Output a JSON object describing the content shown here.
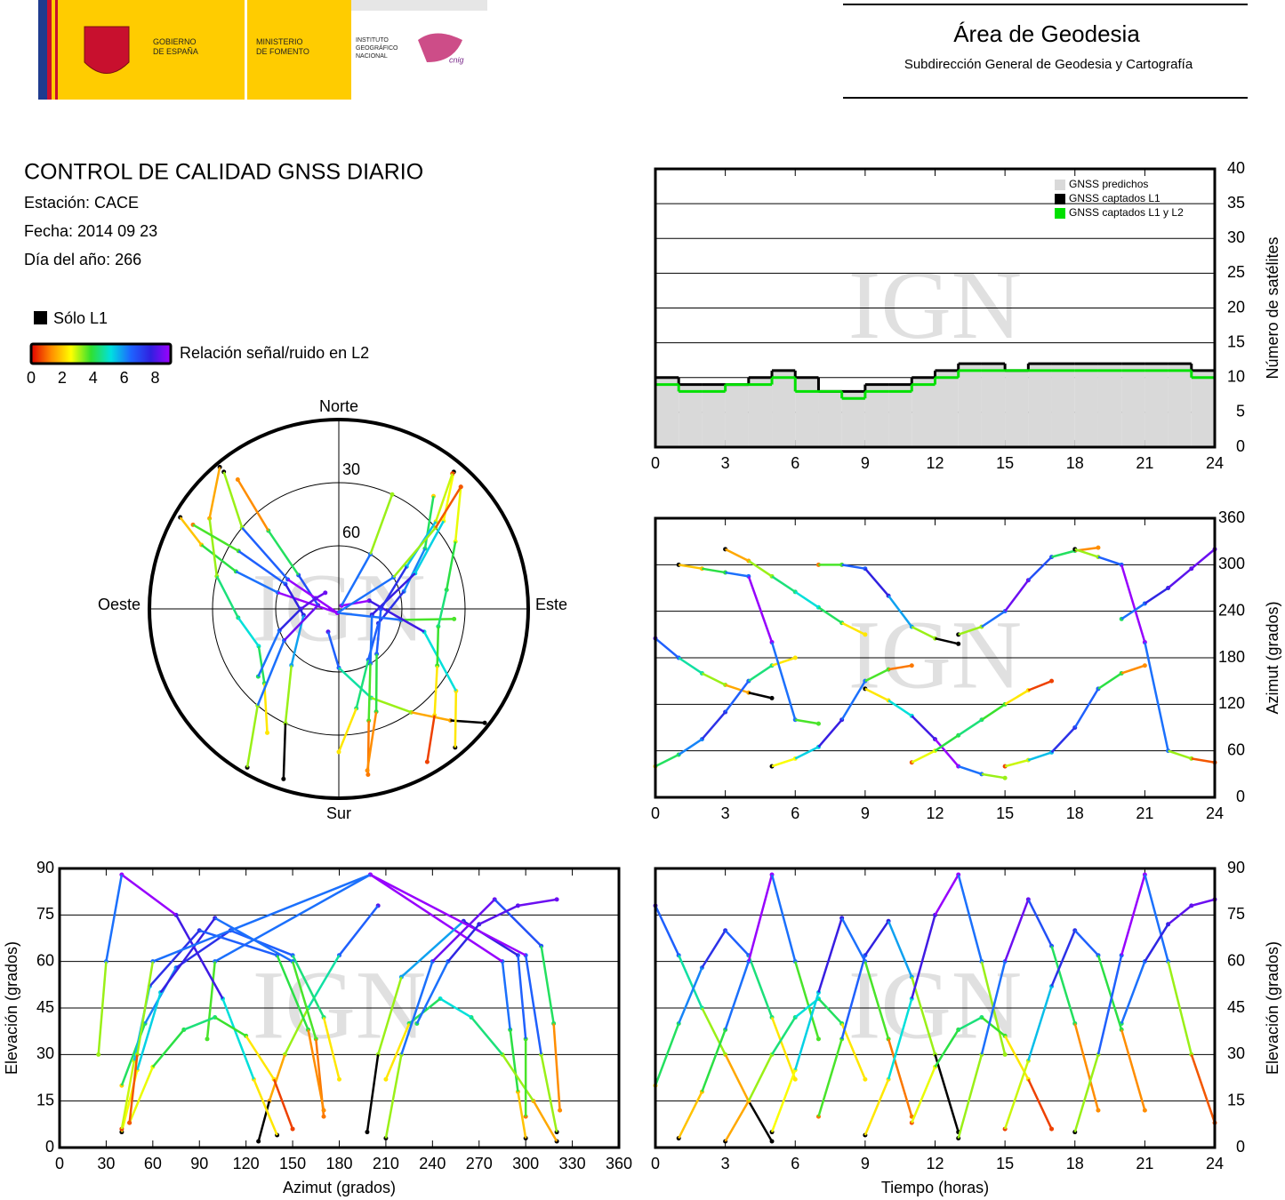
{
  "header": {
    "gobierno": [
      "GOBIERNO",
      "DE ESPAÑA"
    ],
    "ministerio": [
      "MINISTERIO",
      "DE FOMENTO"
    ],
    "instituto": [
      "INSTITUTO",
      "GEOGRÁFICO",
      "NACIONAL"
    ],
    "cnig": "cnig",
    "area": "Área de Geodesia",
    "subdireccion": "Subdirección General de Geodesia y Cartografía"
  },
  "info": {
    "title": "CONTROL DE CALIDAD GNSS DIARIO",
    "station": "Estación: CACE",
    "date": "Fecha: 2014 09 23",
    "doy": "Día del año: 266"
  },
  "legend": {
    "l1_only": "Sólo L1",
    "snr_label": "Relación señal/ruido en L2",
    "clim": [
      0,
      9
    ],
    "ticks": [
      0,
      2,
      4,
      6,
      8
    ],
    "colormap": [
      "#e00000",
      "#ff8c00",
      "#ffff00",
      "#30e030",
      "#00e0e0",
      "#1e64ff",
      "#3020e0",
      "#a000ff"
    ],
    "l1_color": "#000000"
  },
  "watermark": "IGN",
  "chart_data": [
    {
      "type": "line",
      "step": true,
      "x": [
        0,
        1,
        2,
        3,
        4,
        5,
        6,
        7,
        8,
        9,
        10,
        11,
        12,
        13,
        14,
        15,
        16,
        17,
        18,
        19,
        20,
        21,
        22,
        23
      ],
      "xlim": [
        0,
        24
      ],
      "xticks": [
        0,
        3,
        6,
        9,
        12,
        15,
        18,
        21,
        24
      ],
      "ylim": [
        0,
        40
      ],
      "yticks": [
        0,
        5,
        10,
        15,
        20,
        25,
        30,
        35,
        40
      ],
      "ylabel": "Número de satélites",
      "grid": true,
      "legend": "upper right",
      "series": [
        {
          "name": "GNSS predichos",
          "color": "#d9d9d9",
          "area": true,
          "values": [
            10,
            9,
            9,
            9,
            10,
            11,
            10,
            8,
            8,
            9,
            9,
            10,
            11,
            12,
            12,
            11,
            12,
            12,
            12,
            12,
            12,
            12,
            12,
            11
          ]
        },
        {
          "name": "GNSS captados L1",
          "color": "#000000",
          "values": [
            10,
            9,
            9,
            9,
            10,
            11,
            10,
            8,
            8,
            9,
            9,
            10,
            11,
            12,
            12,
            11,
            12,
            12,
            12,
            12,
            12,
            12,
            12,
            11
          ]
        },
        {
          "name": "GNSS captados L1 y L2",
          "color": "#00e000",
          "values": [
            9,
            8,
            8,
            9,
            9,
            10,
            8,
            8,
            7,
            8,
            8,
            9,
            10,
            11,
            11,
            11,
            11,
            11,
            11,
            11,
            11,
            11,
            11,
            10
          ]
        }
      ]
    },
    {
      "type": "polar",
      "rlim": [
        90,
        0
      ],
      "rticks": [
        30,
        60
      ],
      "directions": [
        "Norte",
        "Este",
        "Sur",
        "Oeste"
      ],
      "theta": "azimuth",
      "r": "elevation"
    },
    {
      "type": "scatter",
      "x_source": "time",
      "y_source": "azimuth",
      "xlim": [
        0,
        24
      ],
      "xticks": [
        0,
        3,
        6,
        9,
        12,
        15,
        18,
        21,
        24
      ],
      "ylim": [
        0,
        360
      ],
      "yticks": [
        0,
        60,
        120,
        180,
        240,
        300,
        360
      ],
      "ylabel": "Azimut (grados)",
      "grid": true
    },
    {
      "type": "scatter",
      "x_source": "azimuth",
      "y_source": "elevation",
      "xlim": [
        0,
        360
      ],
      "xticks": [
        0,
        30,
        60,
        90,
        120,
        150,
        180,
        210,
        240,
        270,
        300,
        330,
        360
      ],
      "ylim": [
        0,
        90
      ],
      "yticks": [
        0,
        15,
        30,
        45,
        60,
        75,
        90
      ],
      "xlabel": "Azimut (grados)",
      "ylabel": "Elevación (grados)",
      "grid": true
    },
    {
      "type": "scatter",
      "x_source": "time",
      "y_source": "elevation",
      "xlim": [
        0,
        24
      ],
      "xticks": [
        0,
        3,
        6,
        9,
        12,
        15,
        18,
        21,
        24
      ],
      "ylim": [
        0,
        90
      ],
      "yticks": [
        0,
        15,
        30,
        45,
        60,
        75,
        90
      ],
      "xlabel": "Tiempo (horas)",
      "ylabel": "Elevación (grados)",
      "grid": true
    }
  ],
  "tracks": [
    {
      "time": [
        0,
        1,
        2,
        3,
        4,
        5
      ],
      "azimuth": [
        205,
        180,
        160,
        145,
        135,
        128
      ],
      "elevation": [
        78,
        62,
        45,
        30,
        15,
        2
      ],
      "snr": [
        8.2,
        6.5,
        4.7,
        3.2,
        1.6,
        null
      ]
    },
    {
      "time": [
        0,
        1,
        2,
        3,
        4,
        5,
        6
      ],
      "azimuth": [
        40,
        55,
        75,
        110,
        150,
        170,
        180
      ],
      "elevation": [
        20,
        40,
        58,
        70,
        62,
        42,
        22
      ],
      "snr": [
        2.1,
        4.2,
        6.1,
        7.4,
        6.5,
        4.4,
        2.3
      ]
    },
    {
      "time": [
        1,
        2,
        3,
        4,
        5,
        6,
        7
      ],
      "azimuth": [
        300,
        295,
        290,
        285,
        200,
        100,
        95
      ],
      "elevation": [
        3,
        18,
        38,
        60,
        88,
        60,
        35
      ],
      "snr": [
        null,
        1.9,
        4.0,
        6.3,
        8.9,
        6.3,
        3.7
      ]
    },
    {
      "time": [
        3,
        4,
        5,
        6,
        7,
        8,
        9
      ],
      "azimuth": [
        320,
        305,
        285,
        265,
        245,
        225,
        210
      ],
      "elevation": [
        2,
        15,
        30,
        42,
        48,
        40,
        22
      ],
      "snr": [
        null,
        1.6,
        3.2,
        4.4,
        5.1,
        4.2,
        2.3
      ]
    },
    {
      "time": [
        5,
        6,
        7,
        8,
        9,
        10,
        11
      ],
      "azimuth": [
        40,
        50,
        65,
        100,
        150,
        165,
        170
      ],
      "elevation": [
        5,
        25,
        50,
        74,
        60,
        35,
        10
      ],
      "snr": [
        null,
        2.6,
        5.3,
        7.8,
        6.3,
        3.7,
        1.1
      ]
    },
    {
      "time": [
        7,
        8,
        9,
        10,
        11,
        12,
        13
      ],
      "azimuth": [
        300,
        300,
        295,
        260,
        220,
        205,
        198
      ],
      "elevation": [
        10,
        35,
        62,
        73,
        55,
        30,
        5
      ],
      "snr": [
        1.1,
        3.7,
        6.5,
        7.7,
        5.8,
        3.2,
        null
      ]
    },
    {
      "time": [
        9,
        10,
        11,
        12,
        13,
        14,
        15
      ],
      "azimuth": [
        140,
        125,
        105,
        75,
        40,
        30,
        25
      ],
      "elevation": [
        4,
        22,
        48,
        75,
        88,
        60,
        30
      ],
      "snr": [
        null,
        2.3,
        5.1,
        7.9,
        8.9,
        6.3,
        3.2
      ]
    },
    {
      "time": [
        11,
        12,
        13,
        14,
        15,
        16,
        17
      ],
      "azimuth": [
        45,
        60,
        80,
        100,
        120,
        138,
        150
      ],
      "elevation": [
        8,
        26,
        38,
        42,
        36,
        22,
        6
      ],
      "snr": [
        0.8,
        2.7,
        4.0,
        4.4,
        3.8,
        2.3,
        0.6
      ]
    },
    {
      "time": [
        13,
        14,
        15,
        16,
        17,
        18,
        19
      ],
      "azimuth": [
        210,
        220,
        240,
        280,
        310,
        318,
        322
      ],
      "elevation": [
        3,
        30,
        60,
        80,
        65,
        40,
        12
      ],
      "snr": [
        null,
        3.2,
        6.3,
        8.4,
        6.8,
        4.2,
        1.3
      ]
    },
    {
      "time": [
        15,
        16,
        17,
        18,
        19,
        20,
        21
      ],
      "azimuth": [
        40,
        48,
        58,
        90,
        140,
        160,
        170
      ],
      "elevation": [
        6,
        28,
        52,
        70,
        62,
        38,
        12
      ],
      "snr": [
        0.6,
        2.9,
        5.5,
        7.4,
        6.5,
        4.0,
        1.3
      ]
    },
    {
      "time": [
        18,
        19,
        20,
        21,
        22,
        23,
        24
      ],
      "azimuth": [
        320,
        310,
        300,
        200,
        60,
        50,
        45
      ],
      "elevation": [
        5,
        30,
        62,
        88,
        60,
        30,
        8
      ],
      "snr": [
        null,
        3.2,
        6.5,
        8.9,
        6.3,
        3.2,
        0.8
      ]
    },
    {
      "time": [
        20,
        21,
        22,
        23,
        24
      ],
      "azimuth": [
        230,
        250,
        270,
        295,
        320
      ],
      "elevation": [
        40,
        60,
        72,
        78,
        80
      ],
      "snr": [
        4.2,
        6.3,
        7.6,
        8.2,
        8.4
      ]
    }
  ]
}
